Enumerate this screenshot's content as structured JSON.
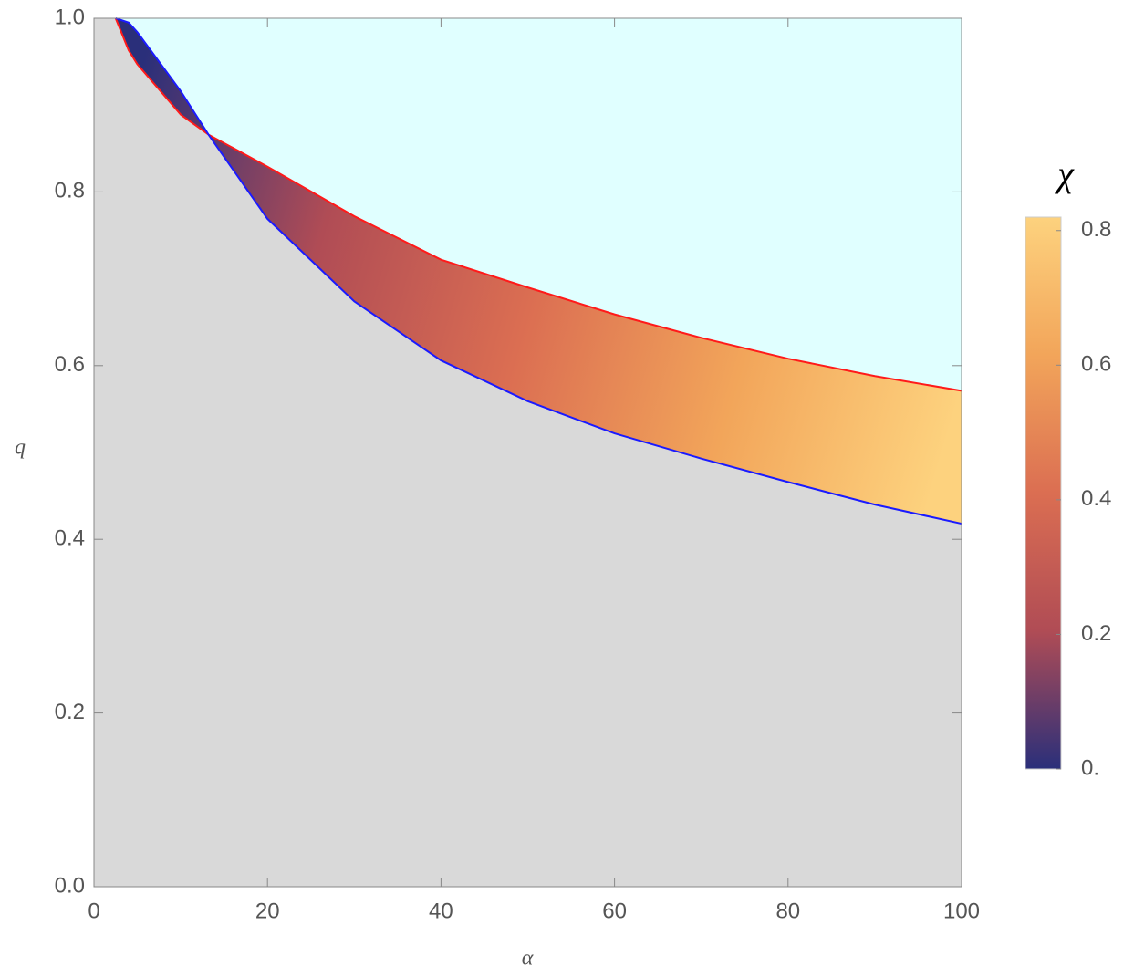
{
  "chart_data": {
    "type": "region",
    "xlabel": "α",
    "ylabel": "q",
    "x": [
      2.5,
      4,
      5,
      10,
      13.2,
      20,
      30,
      40,
      50,
      60,
      70,
      80,
      90,
      100
    ],
    "series": [
      {
        "color": "#ff1a1a",
        "values": [
          1.0,
          0.963,
          0.947,
          0.889,
          0.866,
          0.829,
          0.772,
          0.722,
          0.69,
          0.659,
          0.632,
          0.608,
          0.588,
          0.571
        ]
      },
      {
        "color": "#1a1aff",
        "values": [
          1.0,
          0.995,
          0.984,
          0.916,
          0.866,
          0.769,
          0.674,
          0.606,
          0.559,
          0.522,
          0.493,
          0.466,
          0.44,
          0.418
        ]
      }
    ],
    "upper_color": "#e0ffff",
    "lower_color": "#d9d9d9",
    "xlim": [
      0,
      100
    ],
    "xticks": [
      0,
      20,
      40,
      60,
      80,
      100
    ],
    "ylim": [
      0,
      1
    ],
    "yticks": [
      {
        "value": 0,
        "label": "0.0"
      },
      0.2,
      0.4,
      0.6,
      0.8,
      {
        "value": 1,
        "label": "1.0"
      }
    ],
    "colorbar": {
      "label": "χ",
      "lim": [
        0,
        0.82
      ],
      "ticks": [
        {
          "value": 0,
          "label": "0."
        },
        0.2,
        0.4,
        0.6,
        0.8
      ],
      "colors": [
        "#2a2f7a",
        "#b04c55",
        "#db6e52",
        "#f2a55a",
        "#fdd27e"
      ]
    }
  }
}
